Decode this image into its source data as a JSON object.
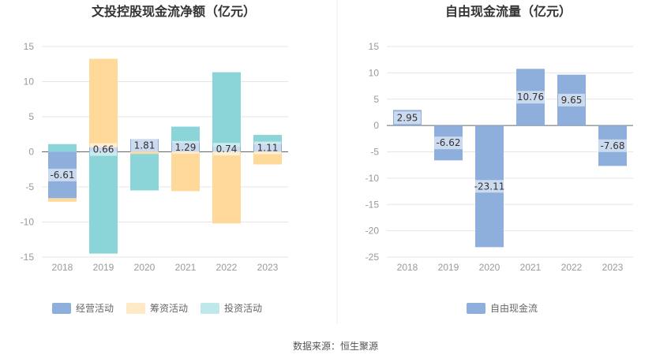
{
  "source": "数据来源：恒生聚源",
  "chart_data": [
    {
      "type": "bar",
      "stacked": true,
      "title": "文投控股现金流净额（亿元）",
      "categories": [
        "2018",
        "2019",
        "2020",
        "2021",
        "2022",
        "2023"
      ],
      "ylim": [
        -15,
        15
      ],
      "yticks": [
        15,
        10,
        5,
        0,
        -5,
        -10,
        -15
      ],
      "grid": true,
      "legend_position": "bottom",
      "series": [
        {
          "name": "经营活动",
          "color": "#8eaedc",
          "values": [
            -6.61,
            0.66,
            1.81,
            1.29,
            0.74,
            1.11
          ]
        },
        {
          "name": "筹资活动",
          "color": "#ffd99a",
          "values": [
            -0.5,
            12.6,
            -0.3,
            -5.6,
            -10.2,
            -1.8
          ]
        },
        {
          "name": "投资活动",
          "color": "#8bd5d9",
          "values": [
            1.1,
            -14.5,
            -5.2,
            2.3,
            10.6,
            1.3
          ]
        }
      ],
      "data_labels": [
        -6.61,
        0.66,
        1.81,
        1.29,
        0.74,
        1.11
      ]
    },
    {
      "type": "bar",
      "title": "自由现金流量（亿元）",
      "categories": [
        "2018",
        "2019",
        "2020",
        "2021",
        "2022",
        "2023"
      ],
      "ylim": [
        -25,
        15
      ],
      "yticks": [
        15,
        10,
        5,
        0,
        -5,
        -10,
        -15,
        -20,
        -25
      ],
      "grid": true,
      "legend_position": "bottom",
      "series": [
        {
          "name": "自由现金流",
          "color": "#8eaedc",
          "values": [
            2.95,
            -6.62,
            -23.11,
            10.76,
            9.65,
            -7.68
          ]
        }
      ],
      "data_labels": [
        2.95,
        -6.62,
        -23.11,
        10.76,
        9.65,
        -7.68
      ]
    }
  ]
}
